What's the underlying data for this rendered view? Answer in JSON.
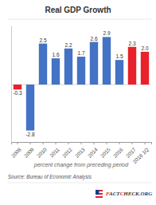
{
  "chart_data": {
    "type": "bar",
    "title": "Real GDP Growth",
    "categories": [
      "2008",
      "2009",
      "2010",
      "2011",
      "2012",
      "2013",
      "2014",
      "2015",
      "2016",
      "2017",
      "2018 1Q"
    ],
    "values": [
      -0.3,
      -2.8,
      2.5,
      1.6,
      2.2,
      1.7,
      2.6,
      2.9,
      1.5,
      2.3,
      2.0
    ],
    "value_labels": [
      "-0.3",
      "-2.8",
      "2.5",
      "1.6",
      "2.2",
      "1.7",
      "2.6",
      "2.9",
      "1.5",
      "2.3",
      "2.0"
    ],
    "colors": [
      "#e8212a",
      "#4472c4",
      "#4472c4",
      "#4472c4",
      "#4472c4",
      "#4472c4",
      "#4472c4",
      "#4472c4",
      "#4472c4",
      "#e8212a",
      "#e8212a"
    ],
    "xlabel": "percent change from preceding period",
    "source": "Source: Bureau of Economic Analysis",
    "annotations": [
      {
        "text": "F",
        "color": "#e8212a"
      },
      {
        "text": "ACT",
        "color": "#333333"
      },
      {
        "text": "C",
        "color": "#e8212a"
      },
      {
        "text": "HECK",
        "color": "#333333"
      },
      {
        "text": ".ORG",
        "color": "#1a3a8a"
      }
    ],
    "ylim": [
      -3.5,
      3.6
    ],
    "yticks": [],
    "data_labels": true,
    "tick_labels": "x",
    "grid": false
  }
}
